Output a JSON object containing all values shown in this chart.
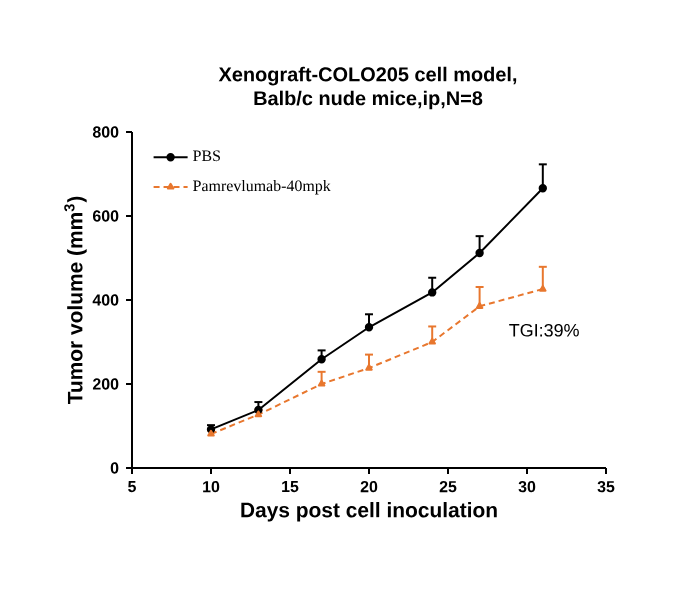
{
  "chart_data": {
    "type": "line",
    "title": "Xenograft-COLO205 cell model,",
    "subtitle": "Balb/c nude mice,ip,N=8",
    "xlabel": "Days post cell inoculation",
    "ylabel": "Tumor volume (mm$^{3}$)",
    "x": [
      10,
      13,
      17,
      20,
      24,
      27,
      31
    ],
    "series": [
      {
        "name": "PBS",
        "color": "#000000",
        "marker": "circle",
        "line_style": "solid",
        "values": [
          92,
          138,
          259,
          335,
          418,
          512,
          666
        ],
        "errors": [
          [
            92,
            102
          ],
          [
            138,
            157
          ],
          [
            259,
            280
          ],
          [
            335,
            366
          ],
          [
            418,
            453
          ],
          [
            512,
            552
          ],
          [
            666,
            723
          ]
        ]
      },
      {
        "name": "Pamrevlumab-40mpk",
        "color": "#e8772e",
        "marker": "triangle",
        "line_style": "dashed",
        "values": [
          81,
          127,
          200,
          238,
          300,
          385,
          426
        ],
        "errors": [
          [
            81,
            89
          ],
          [
            127,
            138
          ],
          [
            200,
            229
          ],
          [
            238,
            270
          ],
          [
            300,
            337
          ],
          [
            385,
            431
          ],
          [
            426,
            479
          ]
        ]
      }
    ],
    "xlim": [
      5,
      35
    ],
    "xticks": [
      5,
      10,
      15,
      20,
      25,
      30,
      35
    ],
    "ylim": [
      0,
      800
    ],
    "yticks": [
      0,
      200,
      400,
      600,
      800
    ],
    "legend": "top left",
    "grid": false,
    "annotations": [
      "TGI:39%"
    ]
  }
}
